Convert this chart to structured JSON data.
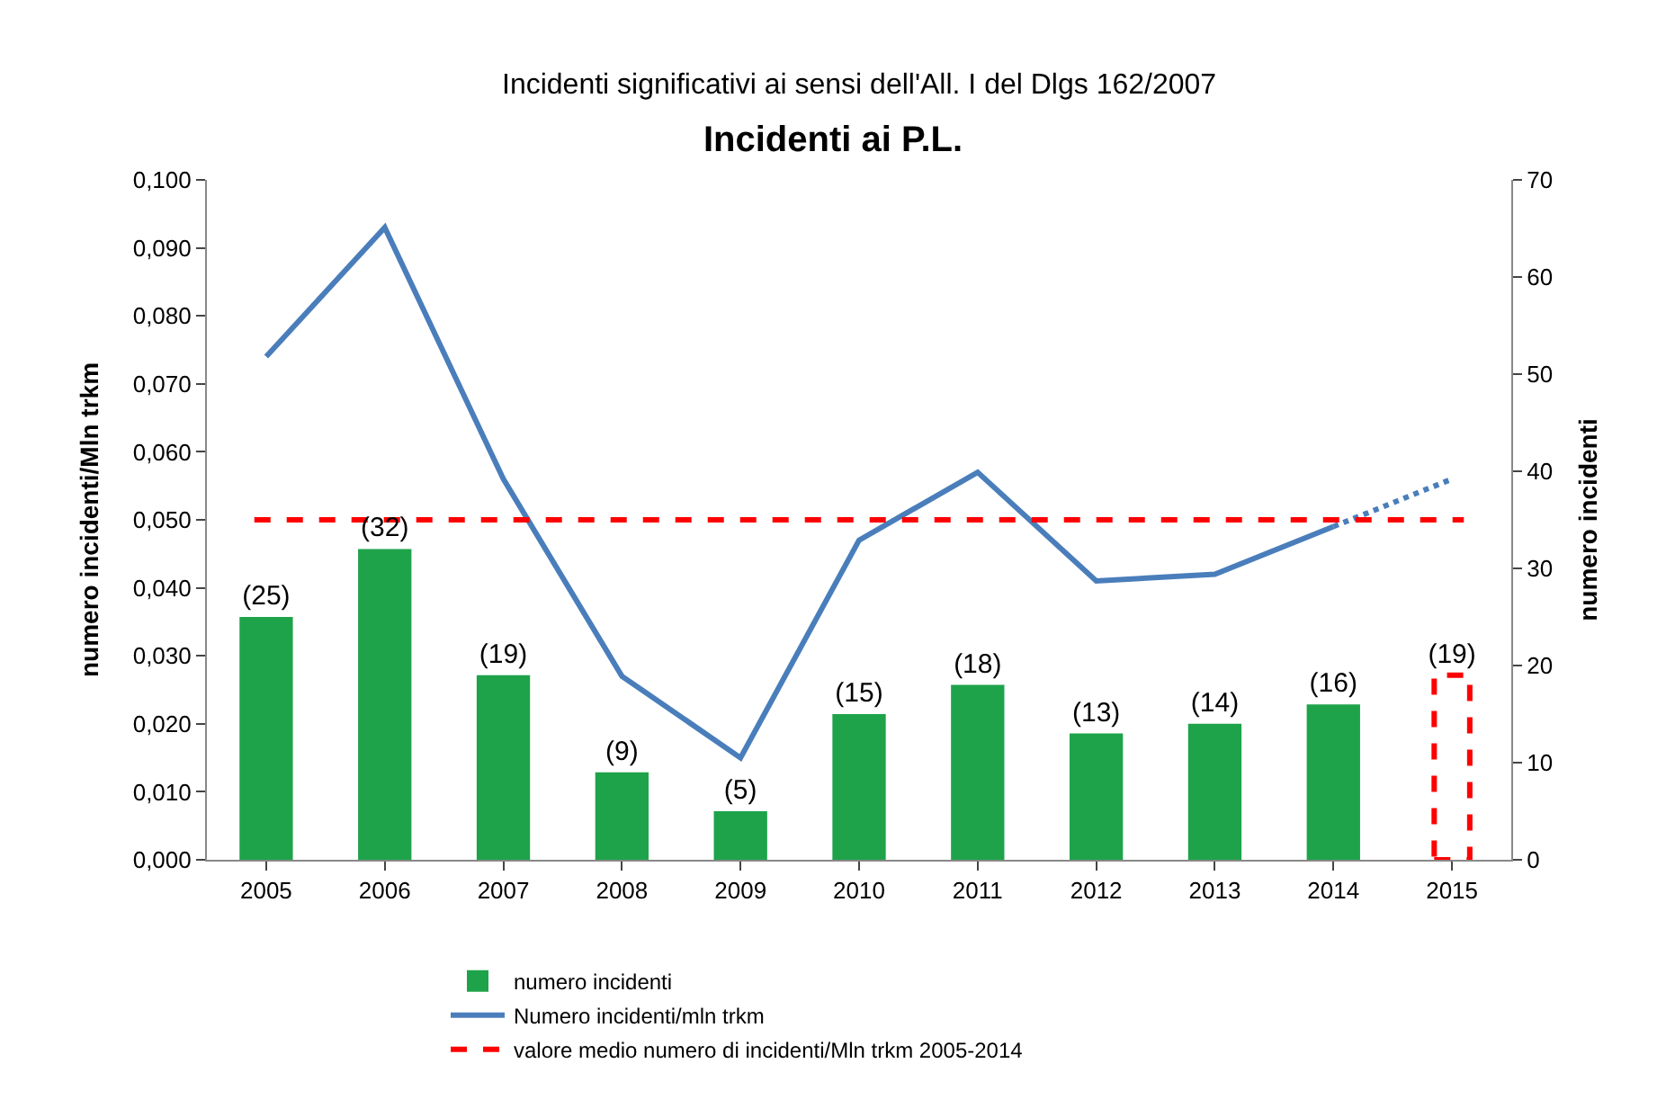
{
  "chart_data": {
    "type": "bar",
    "title": "Incidenti ai P.L.",
    "subtitle": "Incidenti significativi ai sensi dell'All. I del Dlgs 162/2007",
    "ylabel": "numero incidenti/Mln trkm",
    "y2label": "numero incidenti",
    "categories": [
      "2005",
      "2006",
      "2007",
      "2008",
      "2009",
      "2010",
      "2011",
      "2012",
      "2013",
      "2014",
      "2015"
    ],
    "series": [
      {
        "name": "numero incidenti",
        "axis": "y2",
        "color": "#1ea34a",
        "values": [
          25,
          32,
          19,
          9,
          5,
          15,
          18,
          13,
          14,
          16,
          null
        ],
        "value_labels": [
          "(25)",
          "(32)",
          "(19)",
          "(9)",
          "(5)",
          "(15)",
          "(18)",
          "(13)",
          "(14)",
          "(16)",
          null
        ]
      },
      {
        "axis": "y2",
        "color": "#ff0000",
        "line_style": "dashed",
        "values": [
          null,
          null,
          null,
          null,
          null,
          null,
          null,
          null,
          null,
          null,
          19
        ],
        "value_labels": [
          null,
          null,
          null,
          null,
          null,
          null,
          null,
          null,
          null,
          null,
          "(19)"
        ]
      },
      {
        "name": "Numero incidenti/mln trkm",
        "type": "line",
        "color": "#4a7ebb",
        "line_style": "solid",
        "values": [
          0.074,
          0.093,
          0.056,
          0.027,
          0.015,
          0.047,
          0.057,
          0.041,
          0.042,
          0.049,
          null
        ]
      },
      {
        "type": "line",
        "color": "#4a7ebb",
        "line_style": "dotted",
        "values": [
          null,
          null,
          null,
          null,
          null,
          null,
          null,
          null,
          null,
          0.049,
          0.056
        ]
      }
    ],
    "ref_lines": [
      {
        "axis": "y",
        "value": 0.05,
        "label": "valore medio numero di incidenti/Mln trkm 2005-2014",
        "color": "#ff0000",
        "line_style": "dashed"
      }
    ],
    "ylim": [
      0,
      0.1
    ],
    "yticks": [
      {
        "value": 0,
        "label": "0,000"
      },
      {
        "value": 0.01,
        "label": "0,010"
      },
      {
        "value": 0.02,
        "label": "0,020"
      },
      {
        "value": 0.03,
        "label": "0,030"
      },
      {
        "value": 0.04,
        "label": "0,040"
      },
      {
        "value": 0.05,
        "label": "0,050"
      },
      {
        "value": 0.06,
        "label": "0,060"
      },
      {
        "value": 0.07,
        "label": "0,070"
      },
      {
        "value": 0.08,
        "label": "0,080"
      },
      {
        "value": 0.09,
        "label": "0,090"
      },
      {
        "value": 0.1,
        "label": "0,100"
      }
    ],
    "y2lim": [
      0,
      70
    ],
    "y2ticks": [
      0,
      10,
      20,
      30,
      40,
      50,
      60,
      70
    ],
    "legend": "bottom",
    "marker": "none"
  }
}
